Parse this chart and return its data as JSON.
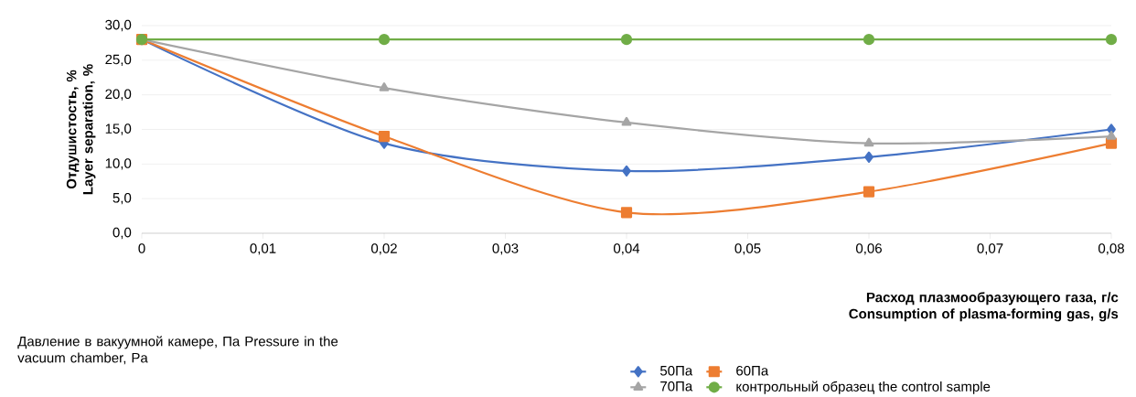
{
  "chart_data": {
    "type": "line",
    "xlabel": "Расход плазмообразующего газа, г/с Consumption of plasma-forming gas, g/s",
    "ylabel": "Отдушистость, % Layer separation, %",
    "legend_title": "Давление в вакуумной камере, Па Pressure in the vacuum chamber, Pa",
    "x": [
      0,
      0.02,
      0.04,
      0.06,
      0.08
    ],
    "series": [
      {
        "name": "50Па",
        "color": "#4472c4",
        "marker": "diamond",
        "values": [
          28,
          13,
          9,
          11,
          15
        ]
      },
      {
        "name": "60Па",
        "color": "#ed7d31",
        "marker": "square",
        "values": [
          28,
          14,
          3,
          6,
          13
        ]
      },
      {
        "name": "70Па",
        "color": "#a5a5a5",
        "marker": "triangle",
        "values": [
          28,
          21,
          16,
          13,
          14
        ]
      },
      {
        "name": "контрольный образец the control sample",
        "color": "#70ad47",
        "marker": "circle",
        "values": [
          28,
          28,
          28,
          28,
          28
        ]
      }
    ],
    "xlim": [
      0,
      0.08
    ],
    "ylim": [
      0,
      30
    ],
    "xticks": [
      {
        "value": 0,
        "label": "0"
      },
      {
        "value": 0.01,
        "label": "0,01"
      },
      {
        "value": 0.02,
        "label": "0,02"
      },
      {
        "value": 0.03,
        "label": "0,03"
      },
      {
        "value": 0.04,
        "label": "0,04"
      },
      {
        "value": 0.05,
        "label": "0,05"
      },
      {
        "value": 0.06,
        "label": "0,06"
      },
      {
        "value": 0.07,
        "label": "0,07"
      },
      {
        "value": 0.08,
        "label": "0,08"
      }
    ],
    "yticks": [
      {
        "value": 0,
        "label": "0,0"
      },
      {
        "value": 5,
        "label": "5,0"
      },
      {
        "value": 10,
        "label": "10,0"
      },
      {
        "value": 15,
        "label": "15,0"
      },
      {
        "value": 20,
        "label": "20,0"
      },
      {
        "value": 25,
        "label": "25,0"
      },
      {
        "value": 30,
        "label": "30,0"
      }
    ],
    "grid": "y",
    "legend": "bottom",
    "line_style": "solid"
  }
}
